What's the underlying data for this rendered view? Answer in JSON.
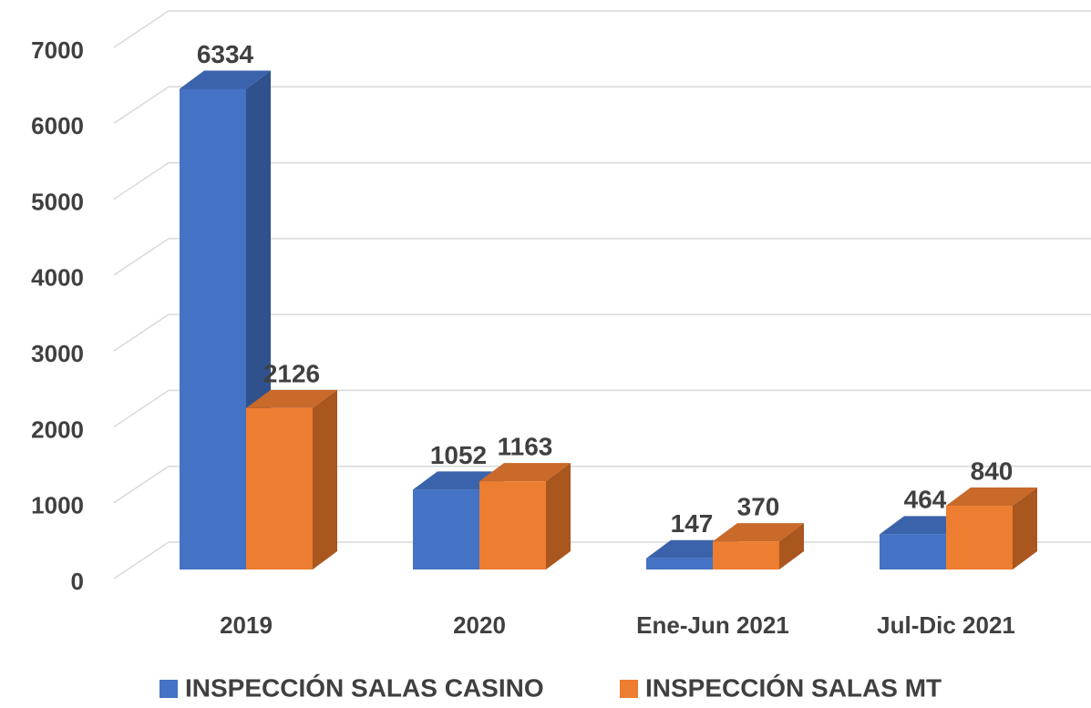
{
  "chart_data": {
    "type": "bar3d",
    "categories": [
      "2019",
      "2020",
      "Ene-Jun 2021",
      "Jul-Dic 2021"
    ],
    "series": [
      {
        "name": "INSPECCIÓN SALAS CASINO",
        "color": "#4472c4",
        "side": "#2f528f",
        "top": "#3b63ab",
        "values": [
          6334,
          1052,
          147,
          464
        ]
      },
      {
        "name": "INSPECCIÓN SALAS MT",
        "color": "#ed7d31",
        "side": "#a9561f",
        "top": "#c9692a",
        "values": [
          2126,
          1163,
          370,
          840
        ]
      }
    ],
    "ylim": [
      0,
      7000
    ],
    "yticks": [
      0,
      1000,
      2000,
      3000,
      4000,
      5000,
      6000,
      7000
    ],
    "grid": true,
    "legend": "bottom"
  }
}
